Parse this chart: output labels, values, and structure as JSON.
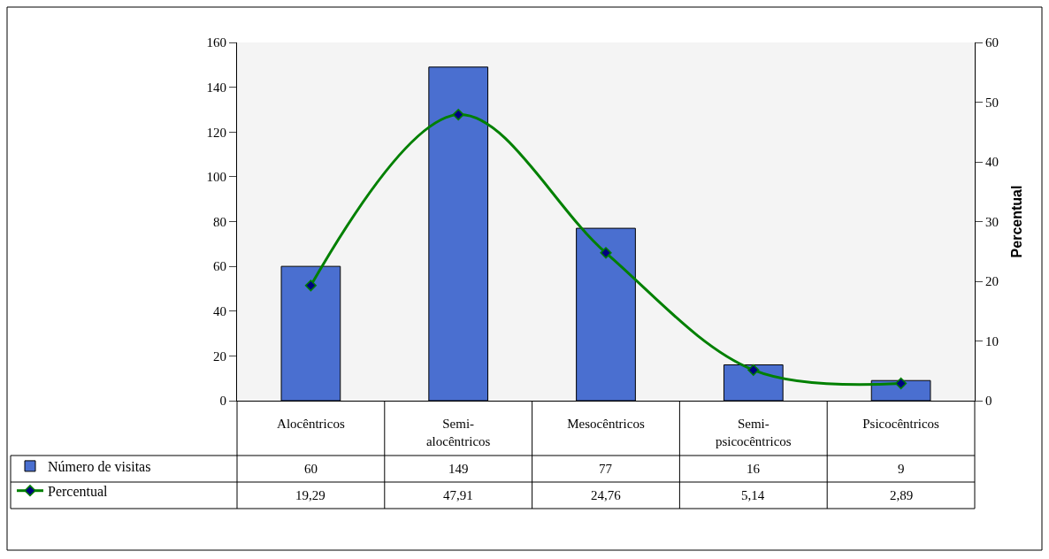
{
  "chart_data": {
    "type": "bar",
    "categories": [
      "Alocêntricos",
      "Semi-alocêntricos",
      "Mesocêntricos",
      "Semi-psicocêntricos",
      "Psicocêntricos"
    ],
    "series": [
      {
        "name": "Número de visitas",
        "color": "#4a6fd0",
        "values": [
          60,
          149,
          77,
          16,
          9
        ],
        "value_labels": [
          "60",
          "149",
          "77",
          "16",
          "9"
        ]
      },
      {
        "name": "Percentual",
        "type": "line",
        "axis": "y2",
        "color": "#008000",
        "marker": "diamond",
        "values": [
          19.29,
          47.91,
          24.76,
          5.14,
          2.89
        ],
        "value_labels": [
          "19,29",
          "47,91",
          "24,76",
          "5,14",
          "2,89"
        ]
      }
    ],
    "ylim": [
      0,
      160
    ],
    "yticks": [
      0,
      20,
      40,
      60,
      80,
      100,
      120,
      140,
      160
    ],
    "y2lim": [
      0,
      60
    ],
    "y2ticks": [
      0,
      10,
      20,
      30,
      40,
      50,
      60
    ],
    "y2label": "Percentual",
    "legend": "bottom left"
  }
}
